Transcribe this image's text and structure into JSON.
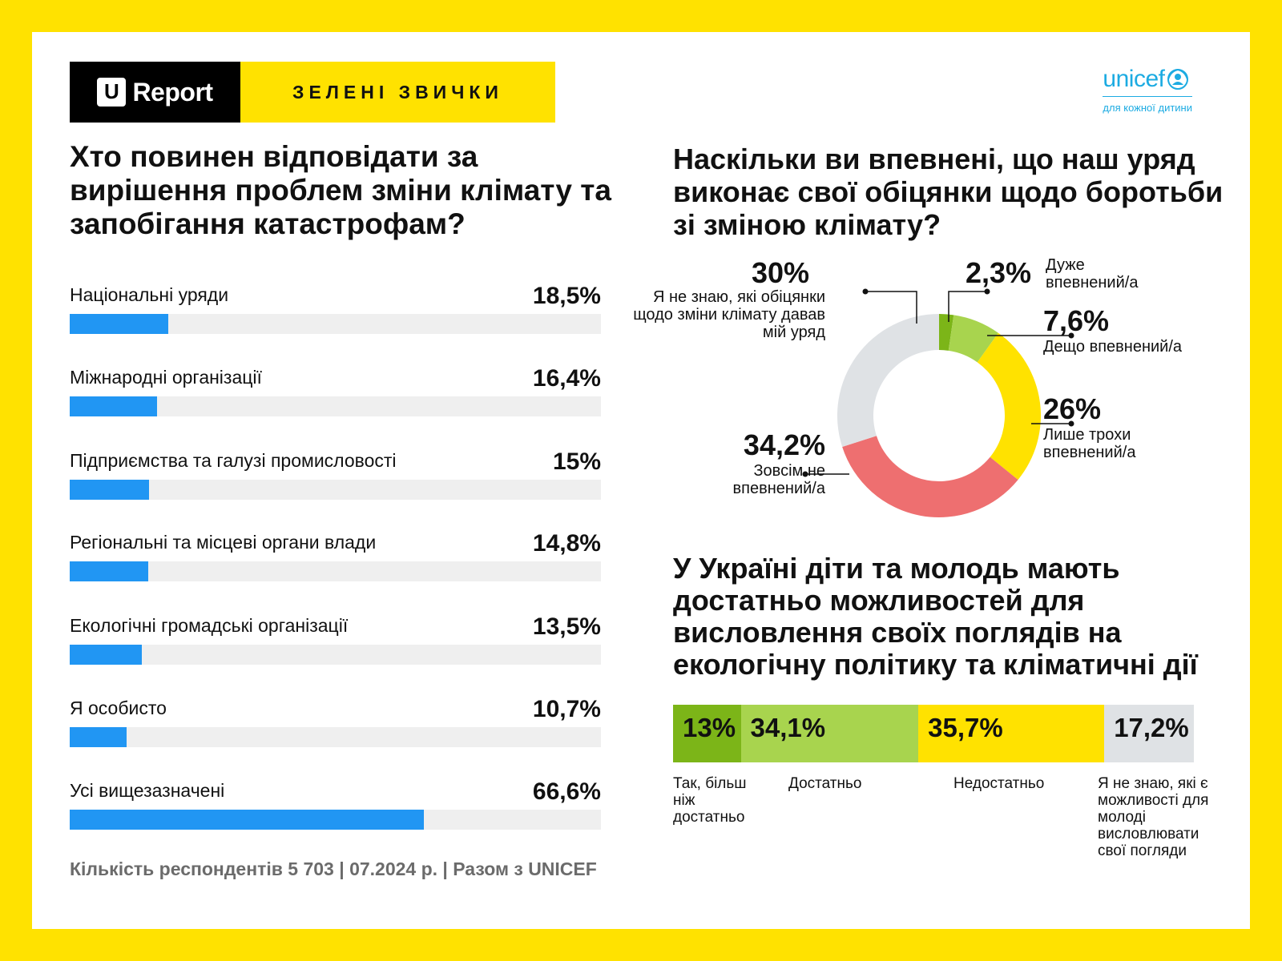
{
  "header": {
    "brand": "Report",
    "brand_u": "U",
    "section_title": "ЗЕЛЕНІ ЗВИЧКИ",
    "partner_name": "unicef",
    "partner_tagline": "для кожної дитини"
  },
  "question1": "Хто повинен відповідати за вирішення проблем зміни клімату та запобігання катастрофам?",
  "question2": "Наскільки ви впевнені, що наш уряд виконає свої обіцянки щодо боротьби зі зміною клімату?",
  "question3": "У Україні діти та молодь мають достатньо можливостей для висловлення своїх поглядів на екологічну політику та кліматичні дії",
  "footer": "Кількість респондентів 5 703 | 07.2024 р. |  Разом з UNICEF",
  "colors": {
    "bar": "#2196F3",
    "track": "#EFEFEF",
    "very": "#7CB518",
    "somewhat": "#A8D44E",
    "little": "#FFE200",
    "not": "#EE6F70",
    "dontknow": "#DFE2E5"
  },
  "chart_data": [
    {
      "type": "bar",
      "orientation": "horizontal",
      "categories": [
        "Національні уряди",
        "Міжнародні організації",
        "Підприємства та галузі промисловості",
        "Регіональні та місцеві органи влади",
        "Екологічні громадські організації",
        "Я особисто",
        "Усі вищезазначені"
      ],
      "values": [
        18.5,
        16.4,
        15,
        14.8,
        13.5,
        10.7,
        66.6
      ],
      "value_labels": [
        "18,5%",
        "16,4%",
        "15%",
        "14,8%",
        "13,5%",
        "10,7%",
        "66,6%"
      ],
      "xlim": [
        0,
        100
      ]
    },
    {
      "type": "pie",
      "donut": true,
      "slices": [
        {
          "label": "Дуже впевнений/а",
          "value": 2.3,
          "value_label": "2,3%",
          "color": "#7CB518"
        },
        {
          "label": "Дещо впевнений/а",
          "value": 7.6,
          "value_label": "7,6%",
          "color": "#A8D44E"
        },
        {
          "label": "Лише трохи впевнений/а",
          "value": 26,
          "value_label": "26%",
          "color": "#FFE200"
        },
        {
          "label": "Зовсім не впевнений/а",
          "value": 34.2,
          "value_label": "34,2%",
          "color": "#EE6F70"
        },
        {
          "label": "Я не знаю, які обіцянки щодо зміни клімату давав мій уряд",
          "value": 30,
          "value_label": "30%",
          "color": "#DFE2E5"
        }
      ]
    },
    {
      "type": "bar",
      "stacked": true,
      "orientation": "horizontal",
      "segments": [
        {
          "label": "Так, більш ніж достатньо",
          "value": 13,
          "value_label": "13%",
          "color": "#7CB518"
        },
        {
          "label": "Достатньо",
          "value": 34.1,
          "value_label": "34,1%",
          "color": "#A8D44E"
        },
        {
          "label": "Недостатньо",
          "value": 35.7,
          "value_label": "35,7%",
          "color": "#FFE200"
        },
        {
          "label": "Я не знаю, які є можливості для молоді висловлювати свої погляди",
          "value": 17.2,
          "value_label": "17,2%",
          "color": "#DFE2E5"
        }
      ]
    }
  ]
}
